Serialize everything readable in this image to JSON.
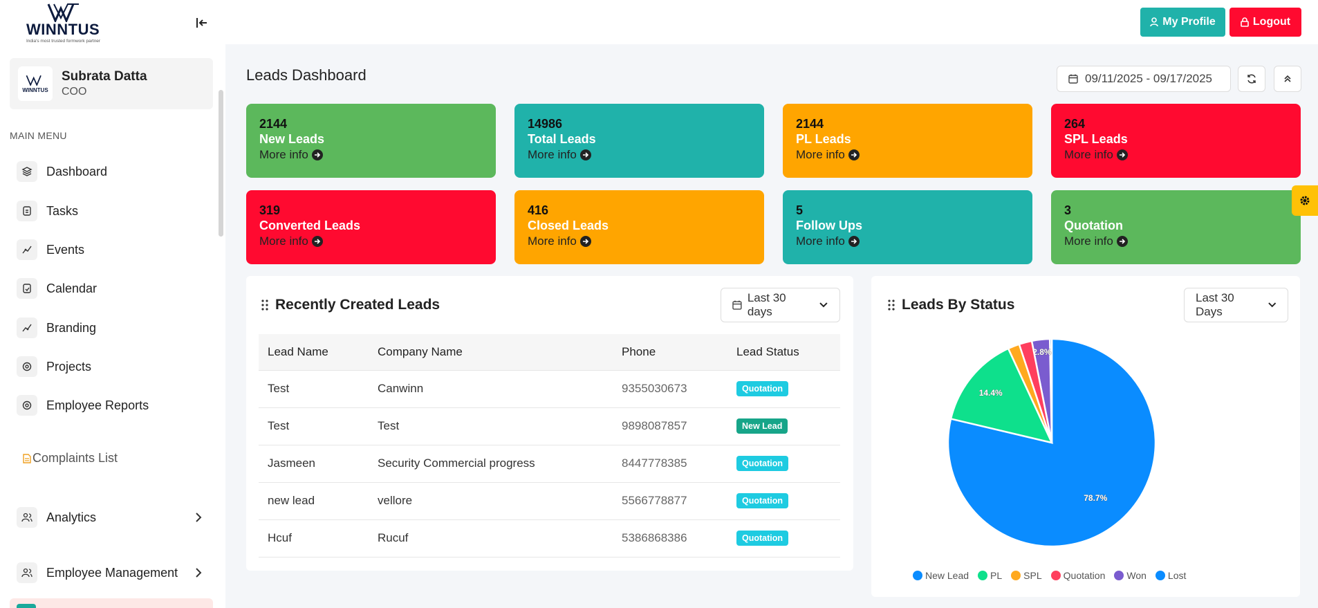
{
  "brand": {
    "name": "WINNTUS",
    "tagline": "India's most trusted formwork partner"
  },
  "header": {
    "profile_label": "My Profile",
    "logout_label": "Logout"
  },
  "user": {
    "name": "Subrata Datta",
    "role": "COO",
    "avatar_text": "WINNTUS"
  },
  "sidebar": {
    "menu_title": "MAIN MENU",
    "items": [
      {
        "label": "Dashboard",
        "icon": "dashboard-icon"
      },
      {
        "label": "Tasks",
        "icon": "tasks-icon"
      },
      {
        "label": "Events",
        "icon": "events-icon"
      },
      {
        "label": "Calendar",
        "icon": "calendar-icon"
      },
      {
        "label": "Branding",
        "icon": "branding-icon"
      },
      {
        "label": "Projects",
        "icon": "projects-icon"
      },
      {
        "label": "Employee Reports",
        "icon": "reports-icon"
      }
    ],
    "complaints_label": "Complaints List",
    "analytics_label": "Analytics",
    "employee_mgmt_label": "Employee Management"
  },
  "dashboard": {
    "title": "Leads Dashboard",
    "date_range": "09/11/2025 - 09/17/2025",
    "stats": [
      {
        "value": "2144",
        "label": "New Leads",
        "more": "More info",
        "color": "#5cb85c"
      },
      {
        "value": "14986",
        "label": "Total Leads",
        "more": "More info",
        "color": "#20b2aa"
      },
      {
        "value": "2144",
        "label": "PL Leads",
        "more": "More info",
        "color": "#ffa500"
      },
      {
        "value": "264",
        "label": "SPL Leads",
        "more": "More info",
        "color": "#ff0a30"
      },
      {
        "value": "319",
        "label": "Converted Leads",
        "more": "More info",
        "color": "#ff0a30"
      },
      {
        "value": "416",
        "label": "Closed Leads",
        "more": "More info",
        "color": "#ffa500"
      },
      {
        "value": "5",
        "label": "Follow Ups",
        "more": "More info",
        "color": "#20b2aa"
      },
      {
        "value": "3",
        "label": "Quotation",
        "more": "More info",
        "color": "#5cb85c"
      }
    ]
  },
  "recent_leads": {
    "title": "Recently Created Leads",
    "filter": "Last 30 days",
    "columns": [
      "Lead Name",
      "Company Name",
      "Phone",
      "Lead Status"
    ],
    "rows": [
      [
        "Test",
        "Canwinn",
        "9355030673",
        "Quotation"
      ],
      [
        "Test",
        "Test",
        "9898087857",
        "New Lead"
      ],
      [
        "Jasmeen",
        "Security Commercial progress",
        "8447778385",
        "Quotation"
      ],
      [
        "new lead",
        "vellore",
        "5566778877",
        "Quotation"
      ],
      [
        "Hcuf",
        "Rucuf",
        "5386868386",
        "Quotation"
      ]
    ]
  },
  "leads_by_status": {
    "title": "Leads By Status",
    "filter": "Last 30 Days"
  },
  "chart_data": {
    "type": "pie",
    "categories": [
      "New Lead",
      "PL",
      "SPL",
      "Quotation",
      "Won",
      "Lost"
    ],
    "values": [
      78.7,
      14.4,
      1.8,
      2.0,
      2.8,
      0.3
    ],
    "colors": [
      "#0a8cff",
      "#0ee08c",
      "#ffa91f",
      "#ff3f5e",
      "#7a5ccf",
      "#0a8cff"
    ],
    "data_labels": [
      "78.7%",
      "14.4%",
      "",
      "",
      "2.8%",
      ""
    ],
    "legend_position": "bottom"
  }
}
